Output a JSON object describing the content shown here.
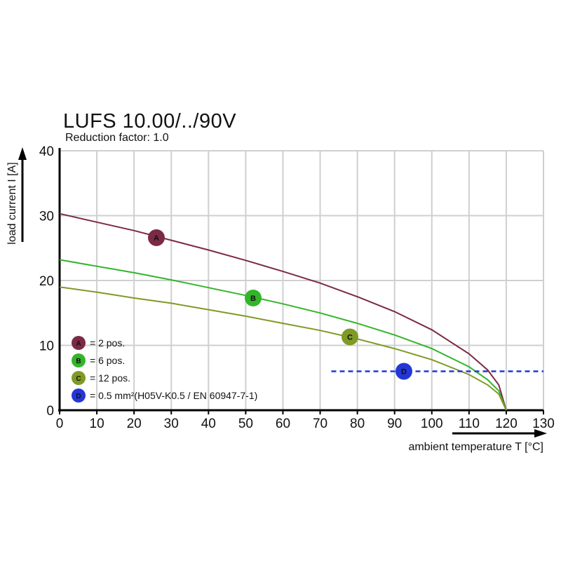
{
  "chart_data": {
    "type": "line",
    "title": "LUFS 10.00/../90V",
    "subtitle": "Reduction factor: 1.0",
    "xlabel": "ambient temperature T [°C]",
    "ylabel": "load current I [A]",
    "xlim": [
      0,
      130
    ],
    "ylim": [
      0,
      40
    ],
    "xticks": [
      0,
      10,
      20,
      30,
      40,
      50,
      60,
      70,
      80,
      90,
      100,
      110,
      120,
      130
    ],
    "yticks": [
      0,
      10,
      20,
      30,
      40
    ],
    "grid": true,
    "x": [
      0,
      10,
      20,
      30,
      40,
      50,
      60,
      70,
      80,
      90,
      100,
      110,
      115,
      118,
      120
    ],
    "series": [
      {
        "id": "A",
        "name": "= 2 pos.",
        "color": "#7b2a45",
        "marker_x": 26,
        "marker_y": 26.6,
        "values": [
          30.3,
          29.0,
          27.7,
          26.2,
          24.7,
          23.1,
          21.4,
          19.6,
          17.5,
          15.2,
          12.4,
          8.7,
          6.2,
          3.9,
          0
        ]
      },
      {
        "id": "B",
        "name": "= 6 pos.",
        "color": "#33b52a",
        "marker_x": 52,
        "marker_y": 17.3,
        "values": [
          23.2,
          22.2,
          21.2,
          20.1,
          18.9,
          17.7,
          16.4,
          15.0,
          13.4,
          11.6,
          9.5,
          6.7,
          4.7,
          3.0,
          0
        ]
      },
      {
        "id": "C",
        "name": "= 12 pos.",
        "color": "#7f9a25",
        "marker_x": 78,
        "marker_y": 11.3,
        "values": [
          19.0,
          18.2,
          17.3,
          16.5,
          15.5,
          14.5,
          13.4,
          12.3,
          11.0,
          9.5,
          7.8,
          5.5,
          3.9,
          2.5,
          0
        ]
      },
      {
        "id": "D",
        "name": "= 0.5 mm²(H05V-K0.5 / EN 60947-7-1)",
        "color": "#2437d6",
        "dashed": true,
        "marker_x": 92.5,
        "marker_y": 6,
        "x": [
          73,
          130
        ],
        "values": [
          6,
          6
        ]
      }
    ],
    "legend_position": "bottom-left"
  }
}
